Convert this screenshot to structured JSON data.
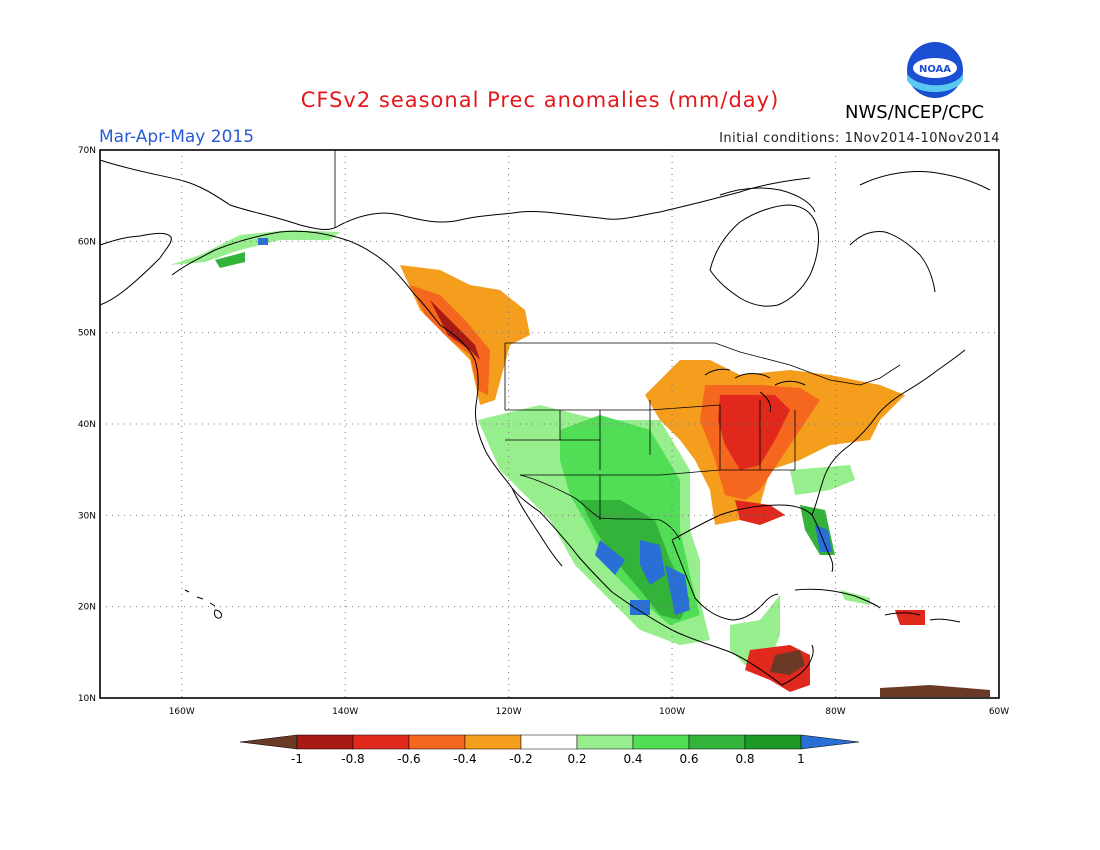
{
  "title": "CFSv2 seasonal Prec anomalies (mm/day)",
  "season": "Mar-Apr-May 2015",
  "initial_conditions": "Initial conditions: 1Nov2014-10Nov2014",
  "agency": "NWS/NCEP/CPC",
  "logo_text": "NOAA",
  "colors": {
    "title": "#e3181c",
    "season": "#2a5bd7",
    "bins": [
      "#6b3a27",
      "#a81b15",
      "#e0291c",
      "#f5661e",
      "#f59d1c",
      "#ffffff",
      "#96ee8c",
      "#51de56",
      "#34b33a",
      "#1d9a26",
      "#2a6fd6"
    ]
  },
  "map": {
    "lat_labels": [
      "70N",
      "60N",
      "50N",
      "40N",
      "30N",
      "20N",
      "10N"
    ],
    "lon_labels": [
      "160W",
      "140W",
      "120W",
      "100W",
      "80W",
      "60W"
    ],
    "grid": true
  },
  "colorbar": {
    "labels": [
      "-1",
      "-0.8",
      "-0.6",
      "-0.4",
      "-0.2",
      "0.2",
      "0.4",
      "0.6",
      "0.8",
      "1"
    ]
  }
}
